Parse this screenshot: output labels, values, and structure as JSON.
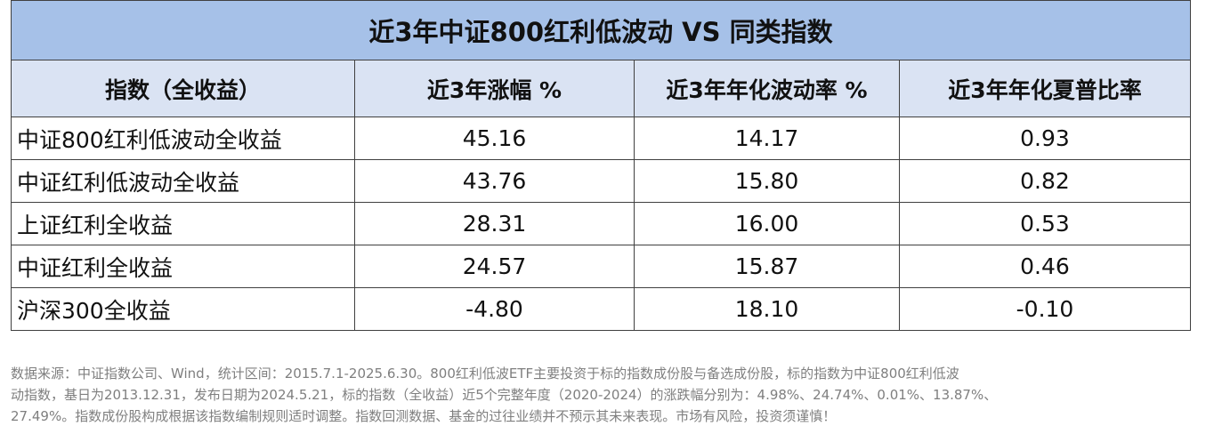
{
  "table": {
    "title": "近3年中证800红利低波动 VS 同类指数",
    "header": [
      "指数（全收益）",
      "近3年涨幅 %",
      "近3年年化波动率 %",
      "近3年年化夏普比率"
    ],
    "rows": [
      [
        "中证800红利低波动全收益",
        "45.16",
        "14.17",
        "0.93"
      ],
      [
        "中证红利低波动全收益",
        "43.76",
        "15.80",
        "0.82"
      ],
      [
        "上证红利全收益",
        "28.31",
        "16.00",
        "0.53"
      ],
      [
        "中证红利全收益",
        "24.57",
        "15.87",
        "0.46"
      ],
      [
        "沪深300全收益",
        "-4.80",
        "18.10",
        "-0.10"
      ]
    ]
  },
  "footnote": [
    "数据来源：中证指数公司、Wind，统计区间：2015.7.1-2025.6.30。800红利低波ETF主要投资于标的指数成份股与备选成份股，标的指数为中证800红利低波",
    "动指数，基日为2013.12.31，发布日期为2024.5.21，标的指数（全收益）近5个完整年度（2020-2024）的涨跌幅分别为：4.98%、24.74%、0.01%、13.87%、",
    "27.49%。指数成份股构成根据该指数编制规则适时调整。指数回测数据、基金的过往业绩并不预示其未来表现。市场有风险，投资须谨慎！"
  ]
}
